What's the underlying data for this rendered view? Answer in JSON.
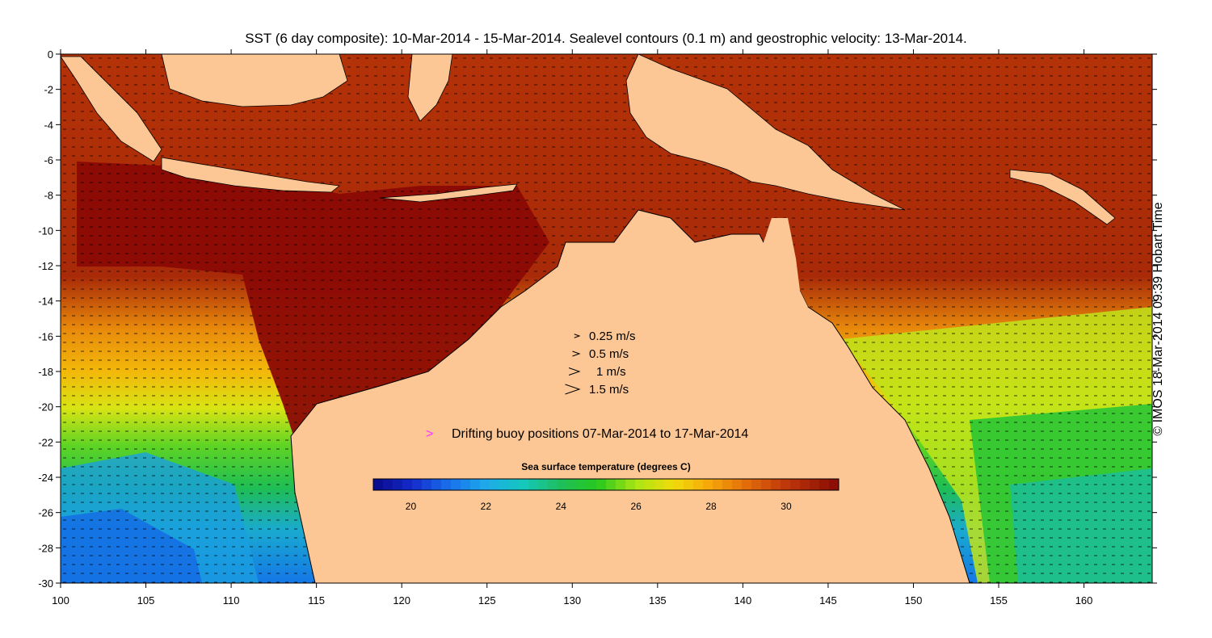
{
  "title": "SST (6 day composite): 10-Mar-2014 - 15-Mar-2014. Sealevel contours (0.1 m) and geostrophic velocity: 13-Mar-2014.",
  "credit": "© IMOS 18-Mar-2014 09:39 Hobart Time",
  "velocity_legend": [
    {
      "label": "0.25 m/s",
      "speed": 0.25
    },
    {
      "label": "0.5 m/s",
      "speed": 0.5
    },
    {
      "label": "1 m/s",
      "speed": 1
    },
    {
      "label": "1.5 m/s",
      "speed": 1.5
    }
  ],
  "buoy_legend": {
    "symbol": ">",
    "label": "Drifting buoy positions 07-Mar-2014 to 17-Mar-2014",
    "color": "#ff33ff"
  },
  "colorbar": {
    "title": "Sea surface temperature (degrees C)",
    "min": 19,
    "max": 31.4,
    "tick_values": [
      20,
      22,
      24,
      26,
      28,
      30
    ],
    "tick_labels": [
      "20",
      "22",
      "24",
      "26",
      "28",
      "30"
    ]
  },
  "colors": {
    "land": "#fcc794",
    "sst_warmest": "#8b0a05",
    "sst_warm": "#c4520c",
    "sst_mid": "#f2a20a",
    "sst_yellow": "#e6ea10",
    "sst_green": "#22c436",
    "sst_cool": "#1aa2d8",
    "sst_coldest": "#0a0a88"
  },
  "chart_data": {
    "type": "map",
    "x_axis": {
      "min": 100,
      "max": 164,
      "ticks": [
        100,
        105,
        110,
        115,
        120,
        125,
        130,
        135,
        140,
        145,
        150,
        155,
        160
      ],
      "tick_labels": [
        "100",
        "105",
        "110",
        "115",
        "120",
        "125",
        "130",
        "135",
        "140",
        "145",
        "150",
        "155",
        "160"
      ]
    },
    "y_axis": {
      "min": -30,
      "max": 0,
      "ticks": [
        0,
        -2,
        -4,
        -6,
        -8,
        -10,
        -12,
        -14,
        -16,
        -18,
        -20,
        -22,
        -24,
        -26,
        -28,
        -30
      ],
      "tick_labels": [
        "0",
        "-2",
        "-4",
        "-6",
        "-8",
        "-10",
        "-12",
        "-14",
        "-16",
        "-18",
        "-20",
        "-22",
        "-24",
        "-26",
        "-28",
        "-30"
      ]
    },
    "sst_regions_degC": [
      {
        "lon": [
          100,
          164
        ],
        "lat": [
          -13,
          0
        ],
        "sst": 29.5
      },
      {
        "lon": [
          100,
          112
        ],
        "lat": [
          -20,
          -13
        ],
        "sst": 28
      },
      {
        "lon": [
          100,
          112
        ],
        "lat": [
          -30,
          -20
        ],
        "sst": 23
      },
      {
        "lon": [
          155,
          164
        ],
        "lat": [
          -30,
          -18
        ],
        "sst": 25
      }
    ]
  }
}
